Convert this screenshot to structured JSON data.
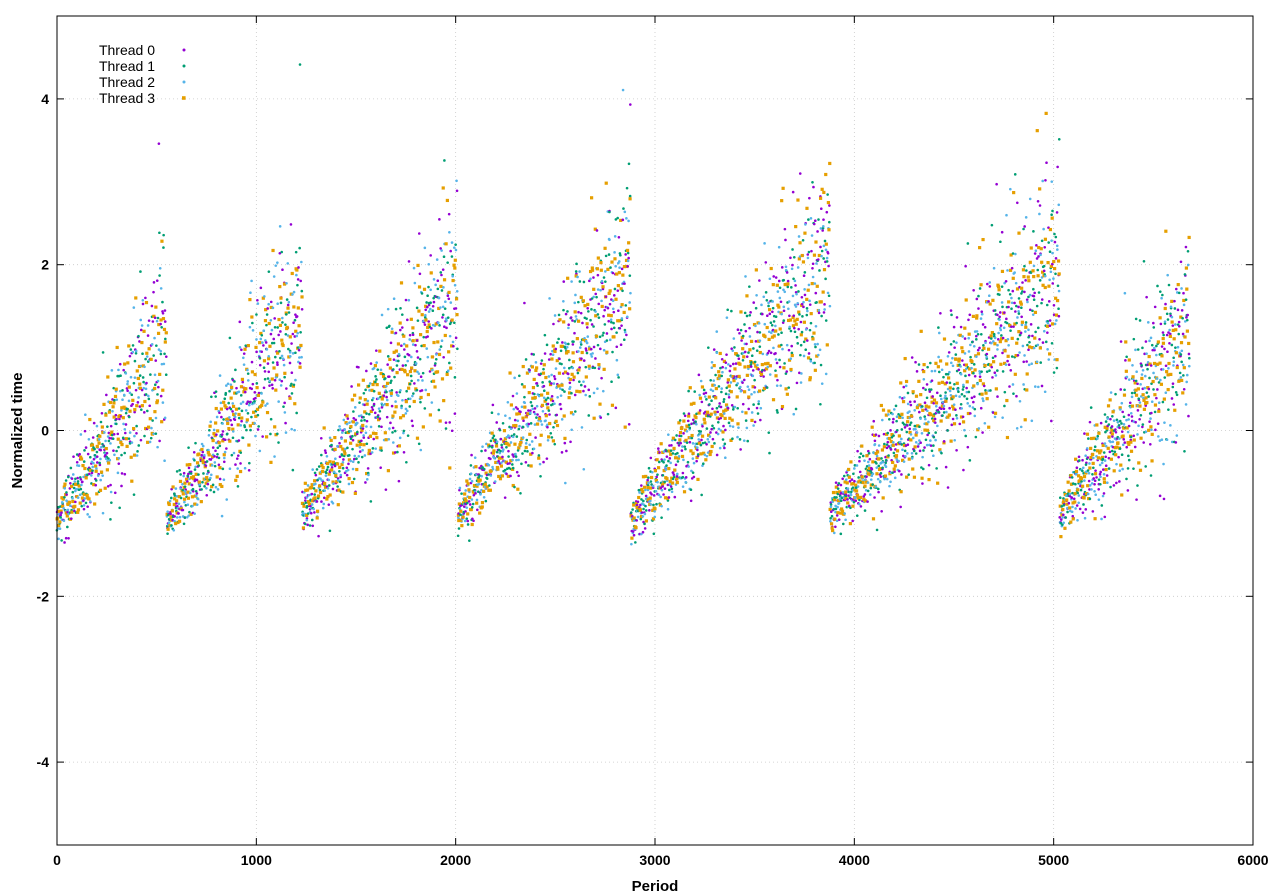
{
  "chart_data": {
    "type": "scatter",
    "title": "",
    "xlabel": "Period",
    "ylabel": "Normalized time",
    "xlim": [
      0,
      6000
    ],
    "ylim": [
      -5,
      5
    ],
    "xticks": [
      0,
      1000,
      2000,
      3000,
      4000,
      5000,
      6000
    ],
    "yticks": [
      -4,
      -2,
      0,
      2,
      4
    ],
    "grid": true,
    "legend_position": "top-left",
    "x_range_data": [
      0,
      5680
    ],
    "series": [
      {
        "name": "Thread 0",
        "color": "#9400d3",
        "marker": "dot"
      },
      {
        "name": "Thread 1",
        "color": "#009e73",
        "marker": "dot"
      },
      {
        "name": "Thread 2",
        "color": "#56b4e9",
        "marker": "dot"
      },
      {
        "name": "Thread 3",
        "color": "#e69f00",
        "marker": "square"
      }
    ],
    "segments": [
      {
        "x_start": 0,
        "x_end": 550,
        "y_start": -1.1,
        "y_end": 1.0
      },
      {
        "x_start": 550,
        "x_end": 1230,
        "y_start": -1.1,
        "y_end": 1.4
      },
      {
        "x_start": 1230,
        "x_end": 2010,
        "y_start": -1.0,
        "y_end": 1.6
      },
      {
        "x_start": 2010,
        "x_end": 2880,
        "y_start": -1.0,
        "y_end": 1.9
      },
      {
        "x_start": 2880,
        "x_end": 3880,
        "y_start": -1.1,
        "y_end": 2.1
      },
      {
        "x_start": 3880,
        "x_end": 5030,
        "y_start": -1.0,
        "y_end": 1.9
      },
      {
        "x_start": 5030,
        "x_end": 5680,
        "y_start": -1.0,
        "y_end": 1.2
      }
    ]
  }
}
